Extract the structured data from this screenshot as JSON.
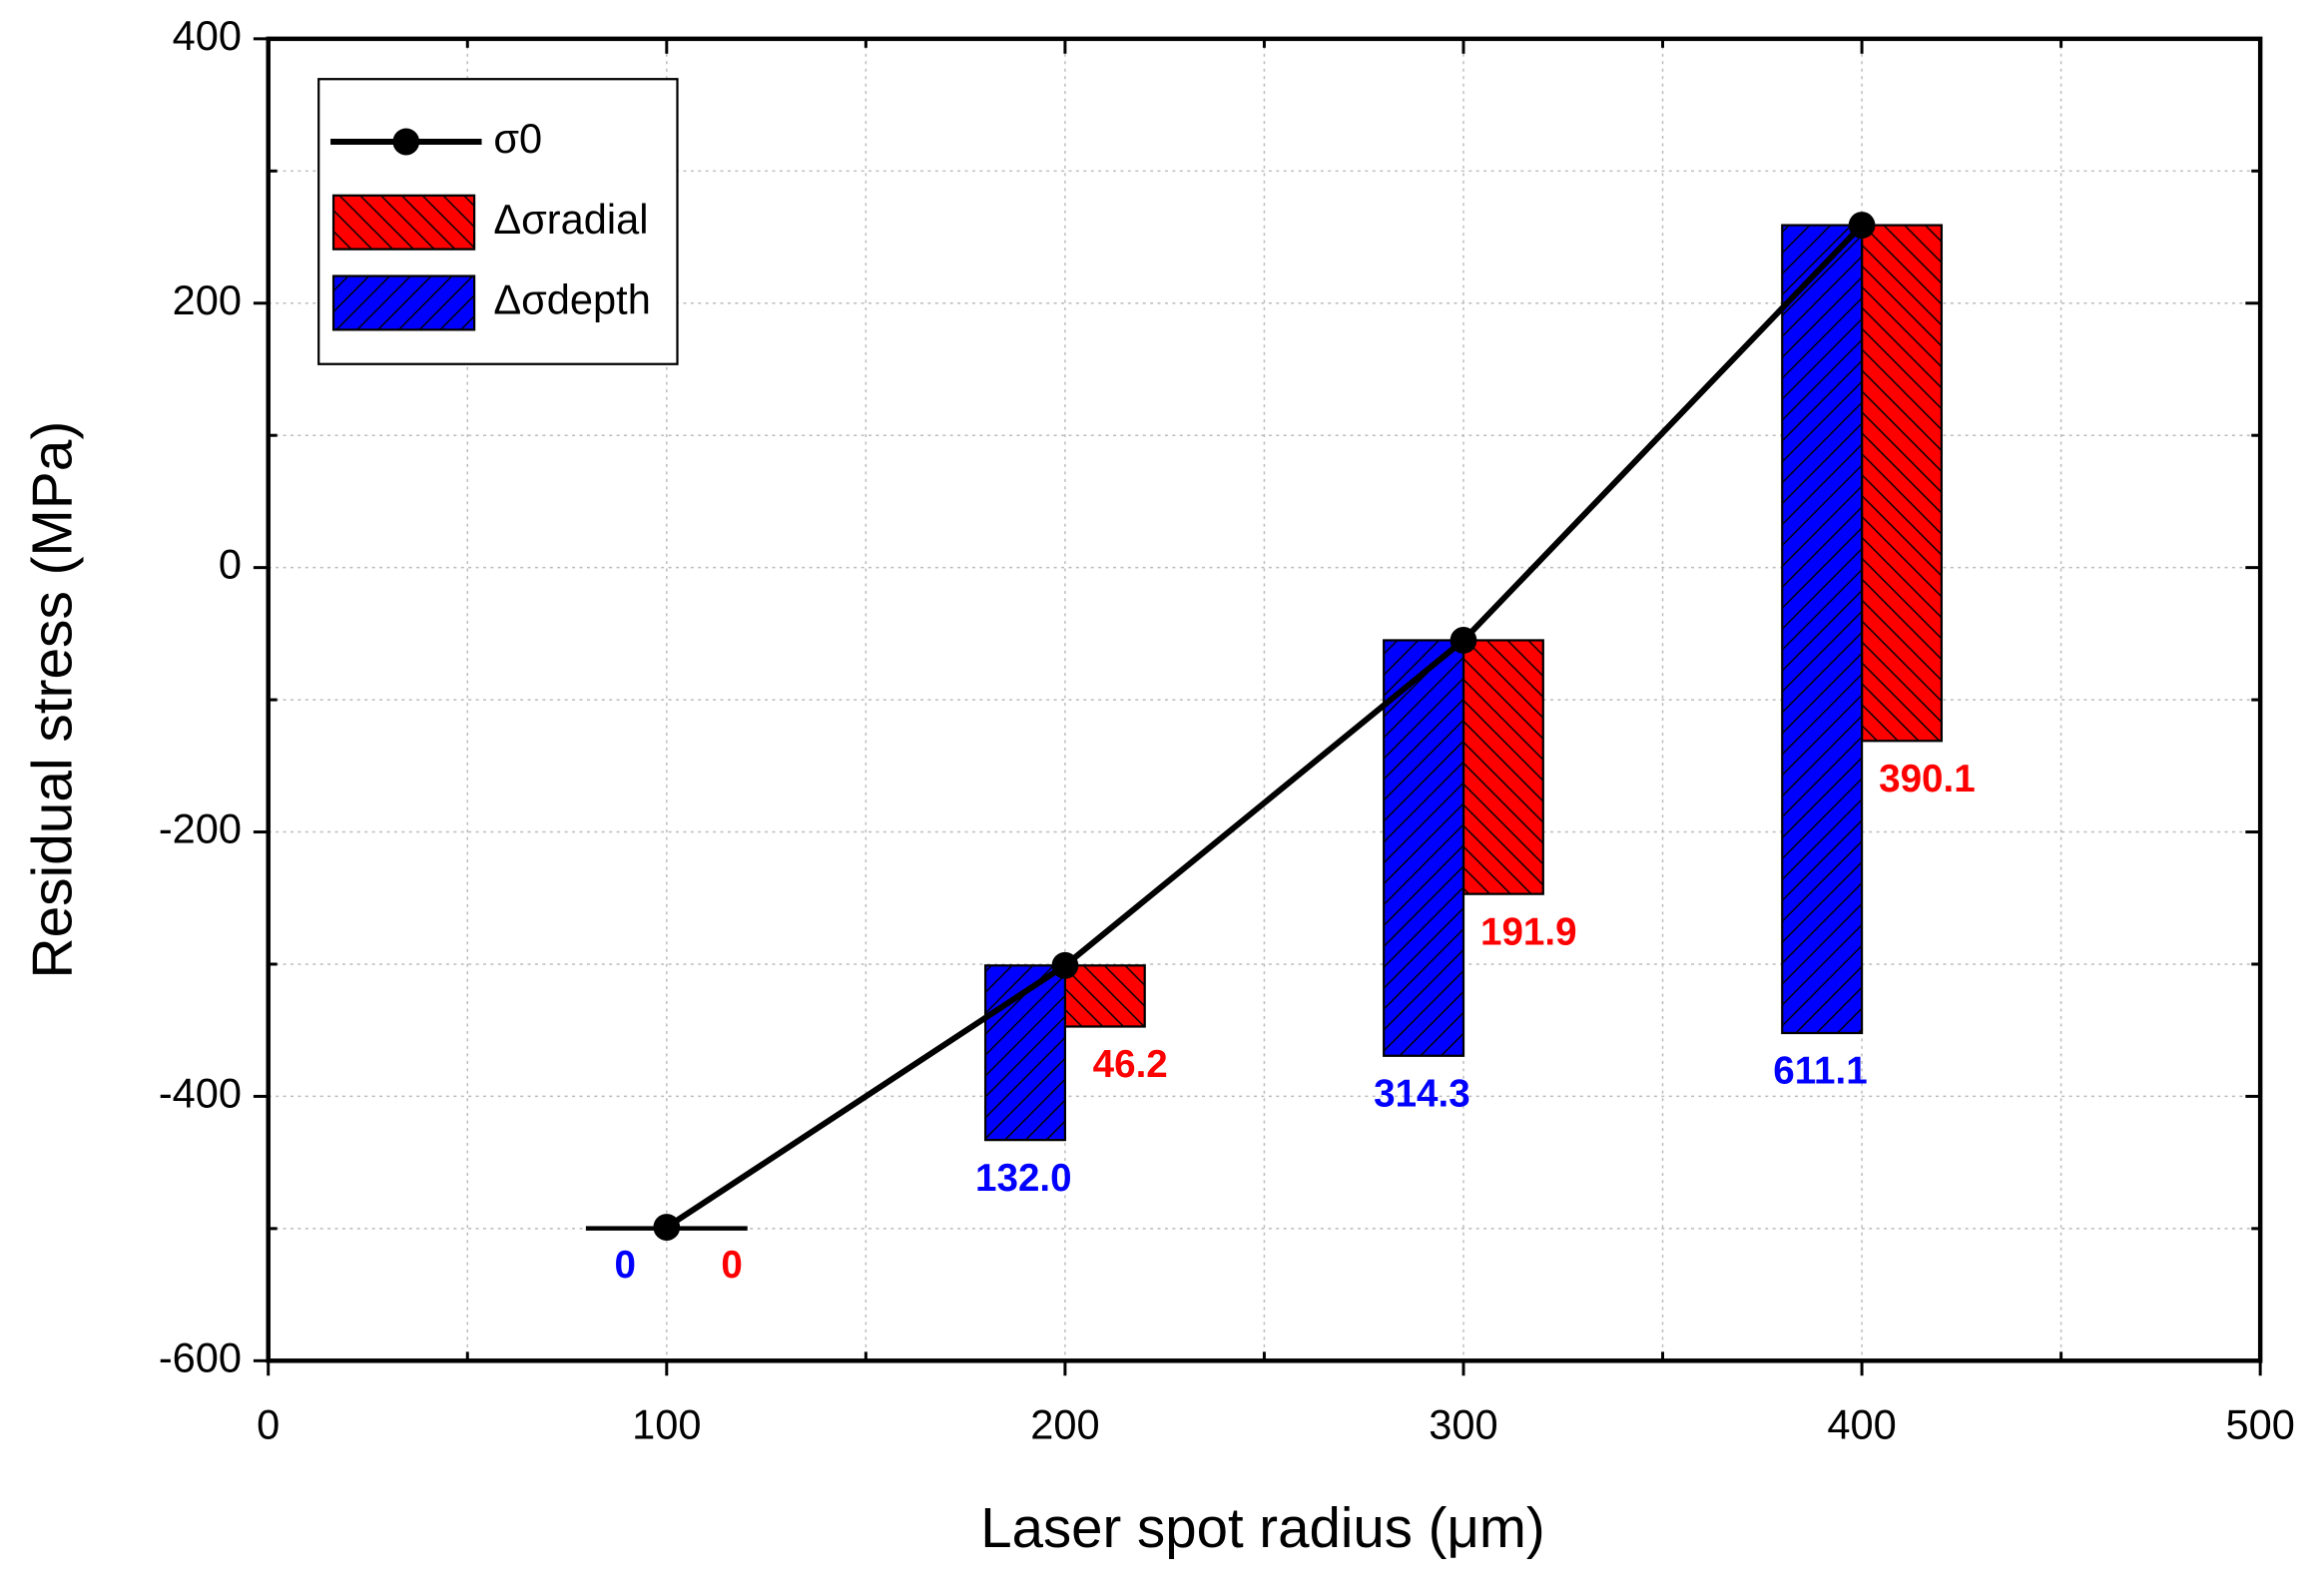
{
  "chart_data": {
    "type": "bar",
    "x_label": "Laser spot radius (μm)",
    "y_label": "Residual stress (MPa)",
    "x": [
      100,
      200,
      300,
      400
    ],
    "series": [
      {
        "name": "σ0",
        "type": "line",
        "color": "#000000",
        "values": [
          -499,
          -301,
          -55,
          259
        ]
      },
      {
        "name": "Δσradial",
        "type": "bar",
        "side": "right",
        "color": "#ff0000",
        "values": [
          0,
          46.2,
          191.9,
          390.1
        ],
        "value_labels": [
          "0",
          "46.2",
          "191.9",
          "390.1"
        ]
      },
      {
        "name": "Δσdepth",
        "type": "bar",
        "side": "left",
        "color": "#0000ff",
        "values": [
          0,
          132.0,
          314.3,
          611.1
        ],
        "value_labels": [
          "0",
          "132.0",
          "314.3",
          "611.1"
        ]
      }
    ],
    "xlim": [
      0,
      500
    ],
    "ylim": [
      -600,
      400
    ],
    "xticks": [
      0,
      100,
      200,
      300,
      400,
      500
    ],
    "yticks": [
      -600,
      -400,
      -200,
      0,
      200,
      400
    ],
    "grid": true,
    "legend": "upper left"
  }
}
